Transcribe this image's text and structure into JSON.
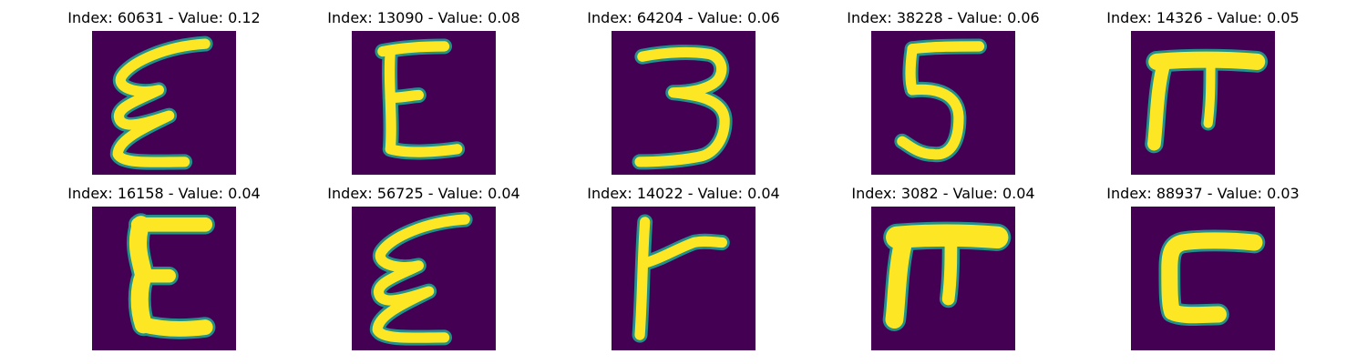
{
  "chart_data": {
    "type": "image-grid",
    "colormap": [
      "#440154",
      "#21918c",
      "#fde725"
    ],
    "panels": [
      {
        "title": "Index: 60631 - Value: 0.12",
        "index": 60631,
        "value": 0.12,
        "glyph": "curvy-E"
      },
      {
        "title": "Index: 13090 - Value: 0.08",
        "index": 13090,
        "value": 0.08,
        "glyph": "E"
      },
      {
        "title": "Index: 64204 - Value: 0.06",
        "index": 64204,
        "value": 0.06,
        "glyph": "3"
      },
      {
        "title": "Index: 38228 - Value: 0.06",
        "index": 38228,
        "value": 0.06,
        "glyph": "5"
      },
      {
        "title": "Index: 14326 - Value: 0.05",
        "index": 14326,
        "value": 0.05,
        "glyph": "pi"
      },
      {
        "title": "Index: 16158 - Value: 0.04",
        "index": 16158,
        "value": 0.04,
        "glyph": "bold-E"
      },
      {
        "title": "Index: 56725 - Value: 0.04",
        "index": 56725,
        "value": 0.04,
        "glyph": "curvy-E"
      },
      {
        "title": "Index: 14022 - Value: 0.04",
        "index": 14022,
        "value": 0.04,
        "glyph": "r"
      },
      {
        "title": "Index: 3082 - Value: 0.04",
        "index": 3082,
        "value": 0.04,
        "glyph": "pi"
      },
      {
        "title": "Index: 88937 - Value: 0.03",
        "index": 88937,
        "value": 0.03,
        "glyph": "square-c"
      }
    ]
  }
}
